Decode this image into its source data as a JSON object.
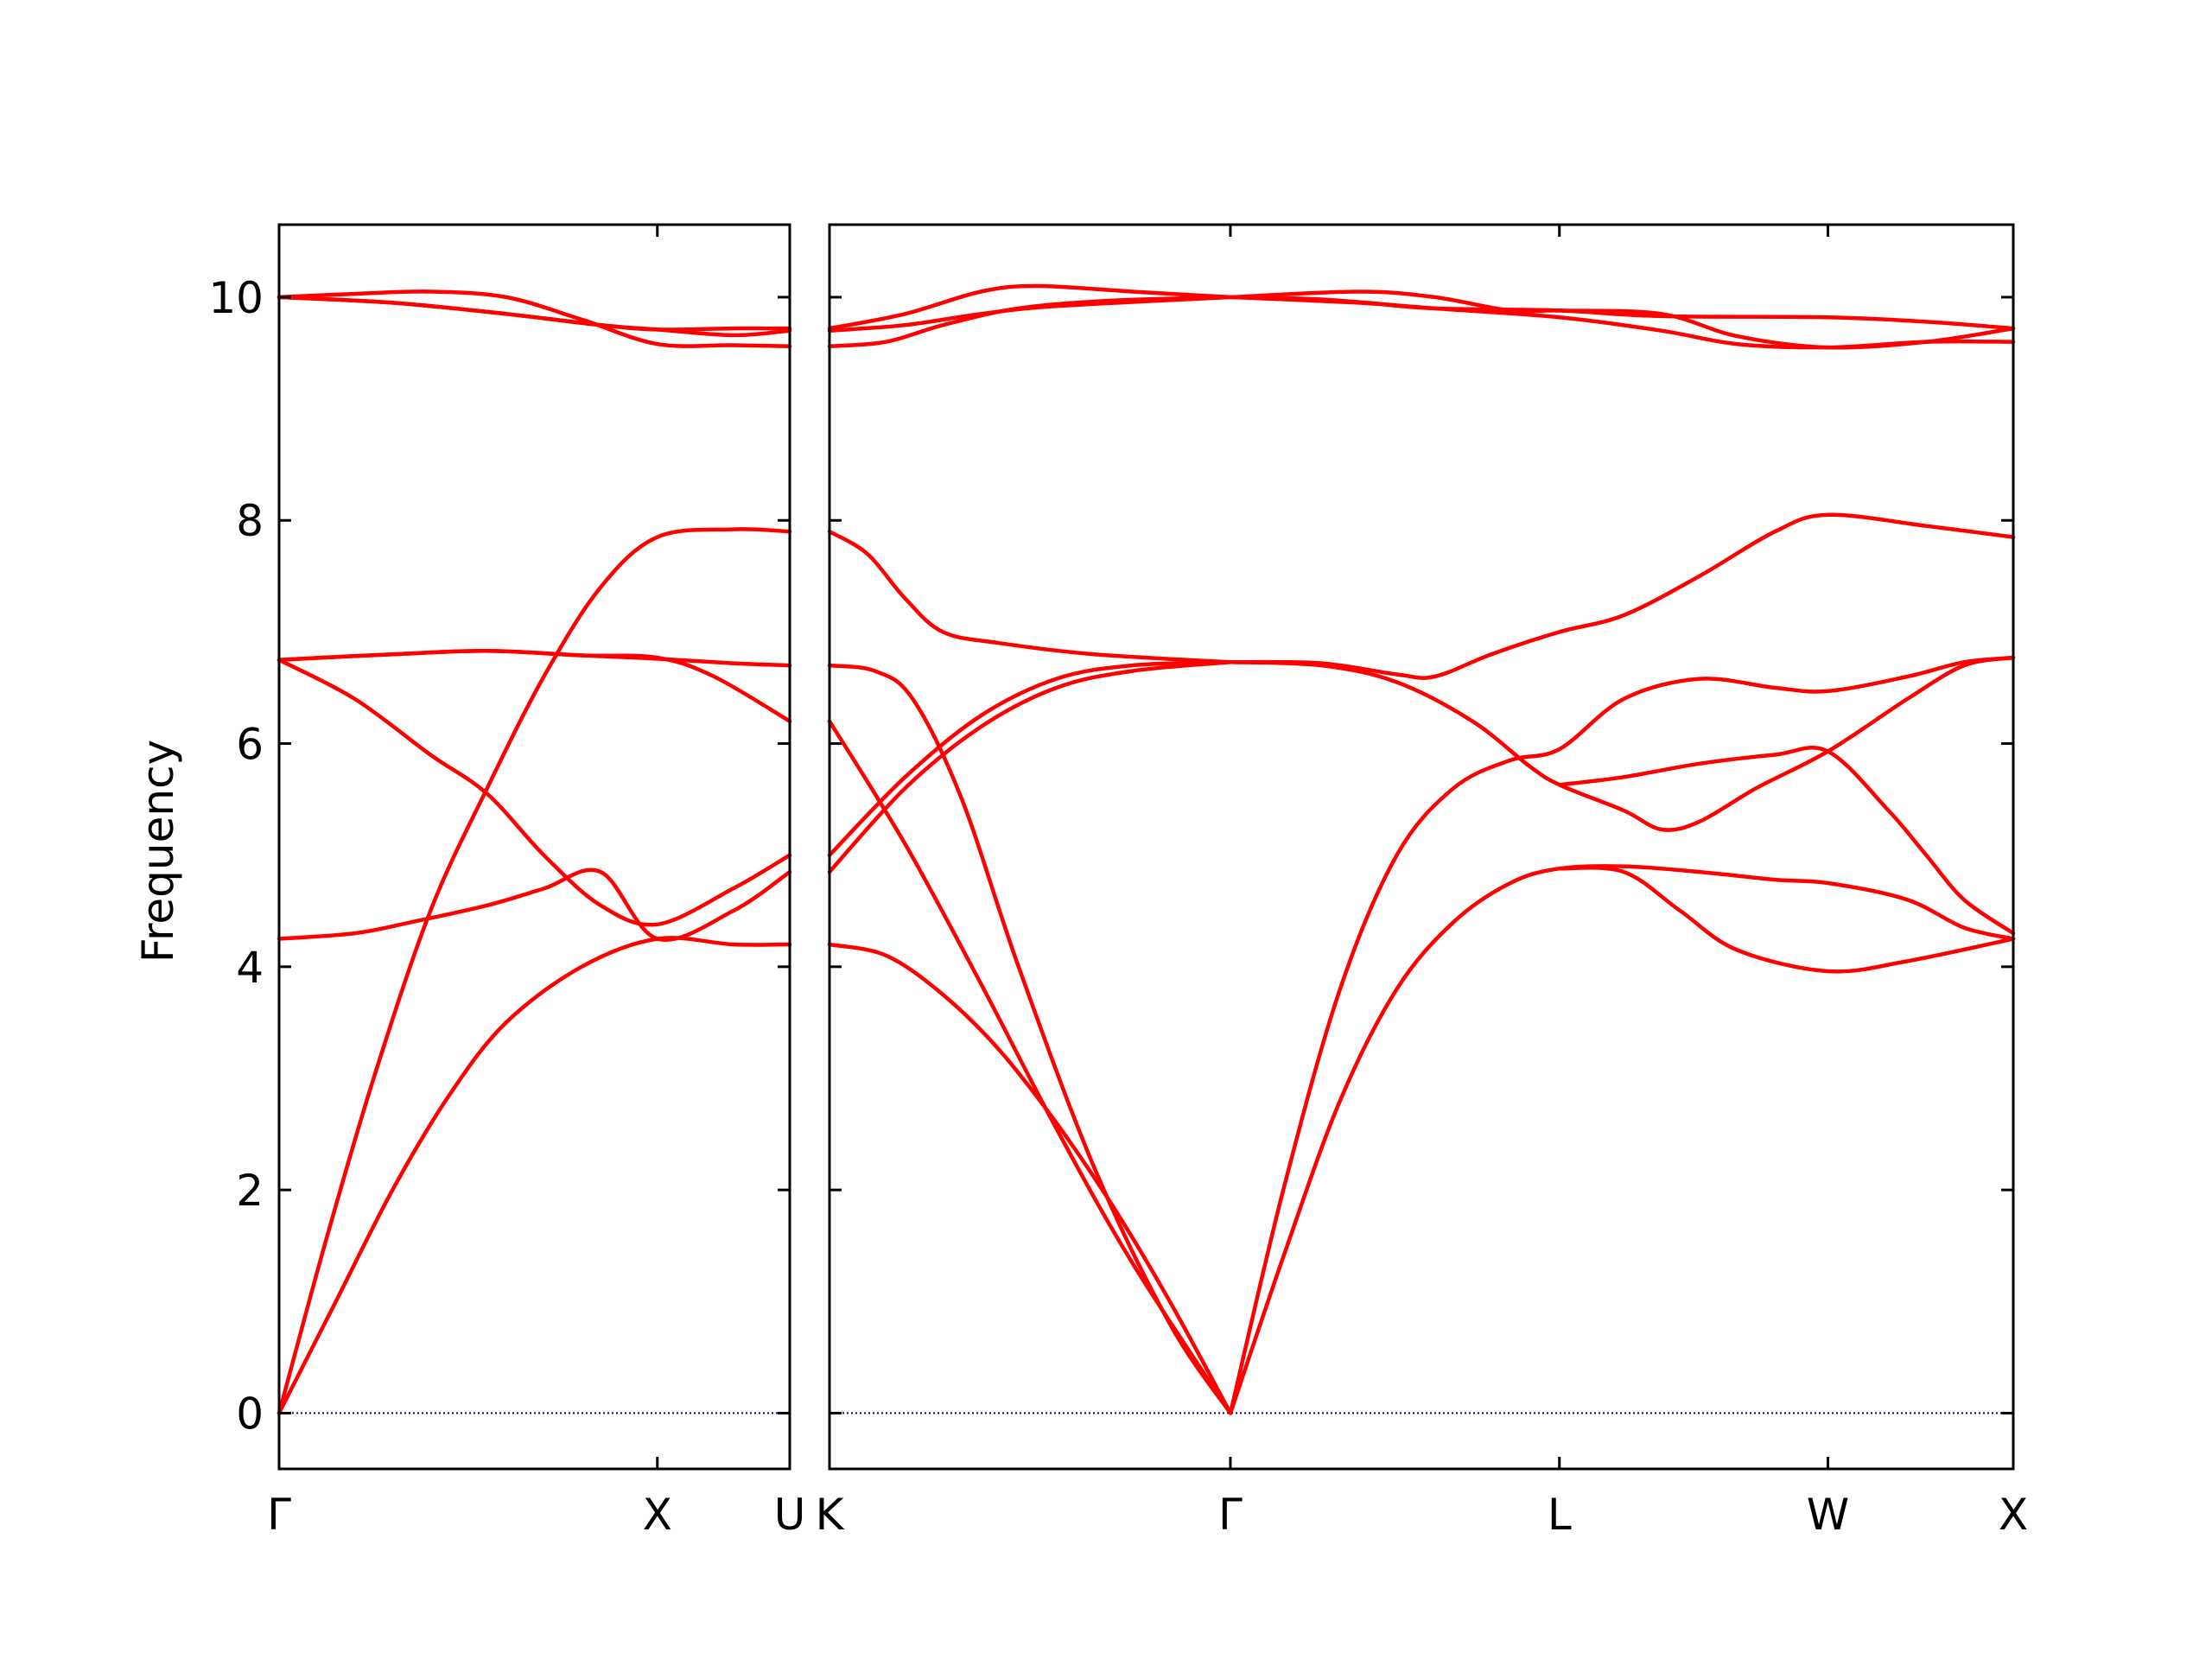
{
  "chart_data": {
    "type": "line",
    "ylabel": "Frequency",
    "ylim": [
      -0.5,
      10.65
    ],
    "yticks": [
      0,
      2,
      4,
      6,
      8,
      10
    ],
    "line_color": "#ff0000",
    "zero_line_color": "#0000aa",
    "panels": [
      {
        "xlim": [
          0,
          1.35
        ],
        "ticks": [
          {
            "x": 0,
            "label": "Γ"
          },
          {
            "x": 1.0,
            "label": "X"
          },
          {
            "x": 1.35,
            "label": "U"
          }
        ],
        "bands": [
          [
            [
              0,
              0
            ],
            [
              0.12,
              1.5
            ],
            [
              0.25,
              3.0
            ],
            [
              0.4,
              4.5
            ],
            [
              0.55,
              5.6
            ],
            [
              0.7,
              6.6
            ],
            [
              0.85,
              7.4
            ],
            [
              1.0,
              7.85
            ],
            [
              1.2,
              7.92
            ],
            [
              1.35,
              7.9
            ]
          ],
          [
            [
              0,
              0
            ],
            [
              0.15,
              1.0
            ],
            [
              0.3,
              2.0
            ],
            [
              0.45,
              2.85
            ],
            [
              0.6,
              3.5
            ],
            [
              0.8,
              4.0
            ],
            [
              1.0,
              4.25
            ],
            [
              1.2,
              4.2
            ],
            [
              1.35,
              4.2
            ]
          ],
          [
            [
              0,
              6.75
            ],
            [
              0.2,
              6.4
            ],
            [
              0.4,
              5.9
            ],
            [
              0.55,
              5.55
            ],
            [
              0.7,
              5.0
            ],
            [
              0.85,
              4.55
            ],
            [
              1.0,
              4.38
            ],
            [
              1.2,
              4.7
            ],
            [
              1.35,
              5.0
            ]
          ],
          [
            [
              0,
              6.75
            ],
            [
              0.3,
              6.8
            ],
            [
              0.55,
              6.83
            ],
            [
              0.8,
              6.79
            ],
            [
              1.0,
              6.77
            ],
            [
              1.15,
              6.6
            ],
            [
              1.35,
              6.2
            ]
          ],
          [
            [
              0,
              6.75
            ],
            [
              0.3,
              6.8
            ],
            [
              0.55,
              6.83
            ],
            [
              0.8,
              6.79
            ],
            [
              1.0,
              6.76
            ],
            [
              1.2,
              6.72
            ],
            [
              1.35,
              6.7
            ]
          ],
          [
            [
              0,
              4.25
            ],
            [
              0.2,
              4.3
            ],
            [
              0.35,
              4.4
            ],
            [
              0.55,
              4.55
            ],
            [
              0.7,
              4.7
            ],
            [
              0.85,
              4.85
            ],
            [
              1.0,
              4.25
            ],
            [
              1.2,
              4.5
            ],
            [
              1.35,
              4.85
            ]
          ],
          [
            [
              0,
              10.0
            ],
            [
              0.2,
              10.03
            ],
            [
              0.4,
              10.05
            ],
            [
              0.6,
              10.0
            ],
            [
              0.8,
              9.8
            ],
            [
              1.0,
              9.58
            ],
            [
              1.2,
              9.57
            ],
            [
              1.35,
              9.56
            ]
          ],
          [
            [
              0,
              10.0
            ],
            [
              0.3,
              9.95
            ],
            [
              0.6,
              9.85
            ],
            [
              0.85,
              9.75
            ],
            [
              1.0,
              9.71
            ],
            [
              1.2,
              9.72
            ],
            [
              1.35,
              9.72
            ]
          ],
          [
            [
              0,
              10.0
            ],
            [
              0.3,
              9.95
            ],
            [
              0.6,
              9.85
            ],
            [
              0.85,
              9.75
            ],
            [
              1.0,
              9.71
            ],
            [
              1.2,
              9.66
            ],
            [
              1.35,
              9.7
            ]
          ]
        ]
      },
      {
        "xlim": [
          0,
          3.13
        ],
        "ticks": [
          {
            "x": 0,
            "label": "K"
          },
          {
            "x": 1.06,
            "label": "Γ"
          },
          {
            "x": 1.93,
            "label": "L"
          },
          {
            "x": 2.64,
            "label": "W"
          },
          {
            "x": 3.13,
            "label": "X"
          }
        ],
        "bands": [
          [
            [
              0,
              4.2
            ],
            [
              0.15,
              4.1
            ],
            [
              0.3,
              3.75
            ],
            [
              0.45,
              3.25
            ],
            [
              0.6,
              2.6
            ],
            [
              0.75,
              1.85
            ],
            [
              0.9,
              1.0
            ],
            [
              1.06,
              0
            ]
          ],
          [
            [
              0,
              6.2
            ],
            [
              0.2,
              5.1
            ],
            [
              0.4,
              3.85
            ],
            [
              0.6,
              2.55
            ],
            [
              0.8,
              1.35
            ],
            [
              1.06,
              0
            ]
          ],
          [
            [
              0,
              6.7
            ],
            [
              0.12,
              6.65
            ],
            [
              0.22,
              6.4
            ],
            [
              0.35,
              5.5
            ],
            [
              0.5,
              4.0
            ],
            [
              0.7,
              2.2
            ],
            [
              0.9,
              0.8
            ],
            [
              1.06,
              0
            ]
          ],
          [
            [
              0,
              4.85
            ],
            [
              0.2,
              5.6
            ],
            [
              0.4,
              6.15
            ],
            [
              0.6,
              6.5
            ],
            [
              0.8,
              6.65
            ],
            [
              1.06,
              6.73
            ]
          ],
          [
            [
              0,
              5.0
            ],
            [
              0.2,
              5.7
            ],
            [
              0.4,
              6.25
            ],
            [
              0.6,
              6.58
            ],
            [
              0.8,
              6.7
            ],
            [
              1.06,
              6.73
            ]
          ],
          [
            [
              0,
              7.9
            ],
            [
              0.1,
              7.7
            ],
            [
              0.2,
              7.3
            ],
            [
              0.3,
              7.0
            ],
            [
              0.45,
              6.9
            ],
            [
              0.7,
              6.8
            ],
            [
              1.06,
              6.73
            ]
          ],
          [
            [
              0,
              9.56
            ],
            [
              0.15,
              9.6
            ],
            [
              0.3,
              9.75
            ],
            [
              0.5,
              9.9
            ],
            [
              0.75,
              9.97
            ],
            [
              1.06,
              10.0
            ]
          ],
          [
            [
              0,
              9.7
            ],
            [
              0.2,
              9.75
            ],
            [
              0.4,
              9.85
            ],
            [
              0.6,
              9.92
            ],
            [
              1.06,
              10.0
            ]
          ],
          [
            [
              0,
              9.72
            ],
            [
              0.2,
              9.85
            ],
            [
              0.4,
              10.05
            ],
            [
              0.55,
              10.1
            ],
            [
              0.8,
              10.05
            ],
            [
              1.06,
              10.0
            ]
          ],
          [
            [
              1.06,
              0
            ],
            [
              1.2,
              1.4
            ],
            [
              1.35,
              2.8
            ],
            [
              1.5,
              3.8
            ],
            [
              1.65,
              4.4
            ],
            [
              1.8,
              4.75
            ],
            [
              1.93,
              4.88
            ],
            [
              2.1,
              4.9
            ],
            [
              2.3,
              4.85
            ],
            [
              2.5,
              4.78
            ],
            [
              2.64,
              4.75
            ],
            [
              2.85,
              4.6
            ],
            [
              3.0,
              4.35
            ],
            [
              3.13,
              4.25
            ]
          ],
          [
            [
              1.06,
              0
            ],
            [
              1.2,
              2.0
            ],
            [
              1.35,
              3.8
            ],
            [
              1.5,
              5.0
            ],
            [
              1.65,
              5.6
            ],
            [
              1.8,
              5.85
            ],
            [
              1.93,
              5.95
            ],
            [
              2.1,
              6.4
            ],
            [
              2.3,
              6.58
            ],
            [
              2.5,
              6.5
            ],
            [
              2.64,
              6.47
            ],
            [
              2.85,
              6.6
            ],
            [
              3.0,
              6.73
            ],
            [
              3.13,
              6.77
            ]
          ],
          [
            [
              1.06,
              6.73
            ],
            [
              1.3,
              6.7
            ],
            [
              1.5,
              6.55
            ],
            [
              1.7,
              6.2
            ],
            [
              1.85,
              5.8
            ],
            [
              1.93,
              5.63
            ],
            [
              2.1,
              5.4
            ],
            [
              2.2,
              5.23
            ],
            [
              2.3,
              5.3
            ],
            [
              2.45,
              5.6
            ],
            [
              2.64,
              5.93
            ],
            [
              2.85,
              6.4
            ],
            [
              3.0,
              6.7
            ],
            [
              3.13,
              6.77
            ]
          ],
          [
            [
              1.93,
              5.63
            ],
            [
              2.1,
              5.7
            ],
            [
              2.3,
              5.82
            ],
            [
              2.5,
              5.9
            ],
            [
              2.64,
              5.93
            ],
            [
              2.8,
              5.4
            ],
            [
              2.9,
              5.0
            ],
            [
              3.0,
              4.6
            ],
            [
              3.13,
              4.3
            ]
          ],
          [
            [
              1.93,
              4.88
            ],
            [
              2.1,
              4.85
            ],
            [
              2.25,
              4.5
            ],
            [
              2.4,
              4.15
            ],
            [
              2.64,
              3.96
            ],
            [
              2.85,
              4.05
            ],
            [
              3.13,
              4.25
            ]
          ],
          [
            [
              1.06,
              6.73
            ],
            [
              1.3,
              6.72
            ],
            [
              1.5,
              6.62
            ],
            [
              1.6,
              6.6
            ],
            [
              1.75,
              6.8
            ],
            [
              1.93,
              7.0
            ],
            [
              2.1,
              7.15
            ],
            [
              2.3,
              7.5
            ],
            [
              2.5,
              7.9
            ],
            [
              2.64,
              8.05
            ],
            [
              2.9,
              7.95
            ],
            [
              3.13,
              7.85
            ]
          ],
          [
            [
              1.06,
              10.0
            ],
            [
              1.3,
              9.98
            ],
            [
              1.6,
              9.9
            ],
            [
              1.93,
              9.82
            ],
            [
              2.2,
              9.7
            ],
            [
              2.4,
              9.58
            ],
            [
              2.64,
              9.55
            ],
            [
              2.9,
              9.6
            ],
            [
              3.13,
              9.6
            ]
          ],
          [
            [
              1.06,
              10.0
            ],
            [
              1.4,
              10.05
            ],
            [
              1.6,
              10.0
            ],
            [
              1.8,
              9.88
            ],
            [
              1.93,
              9.88
            ],
            [
              2.2,
              9.85
            ],
            [
              2.4,
              9.65
            ],
            [
              2.64,
              9.55
            ],
            [
              2.9,
              9.6
            ],
            [
              3.13,
              9.72
            ]
          ],
          [
            [
              1.06,
              10.0
            ],
            [
              1.4,
              9.95
            ],
            [
              1.6,
              9.9
            ],
            [
              1.93,
              9.88
            ],
            [
              2.2,
              9.83
            ],
            [
              2.64,
              9.82
            ],
            [
              2.9,
              9.78
            ],
            [
              3.13,
              9.72
            ]
          ]
        ]
      }
    ]
  }
}
